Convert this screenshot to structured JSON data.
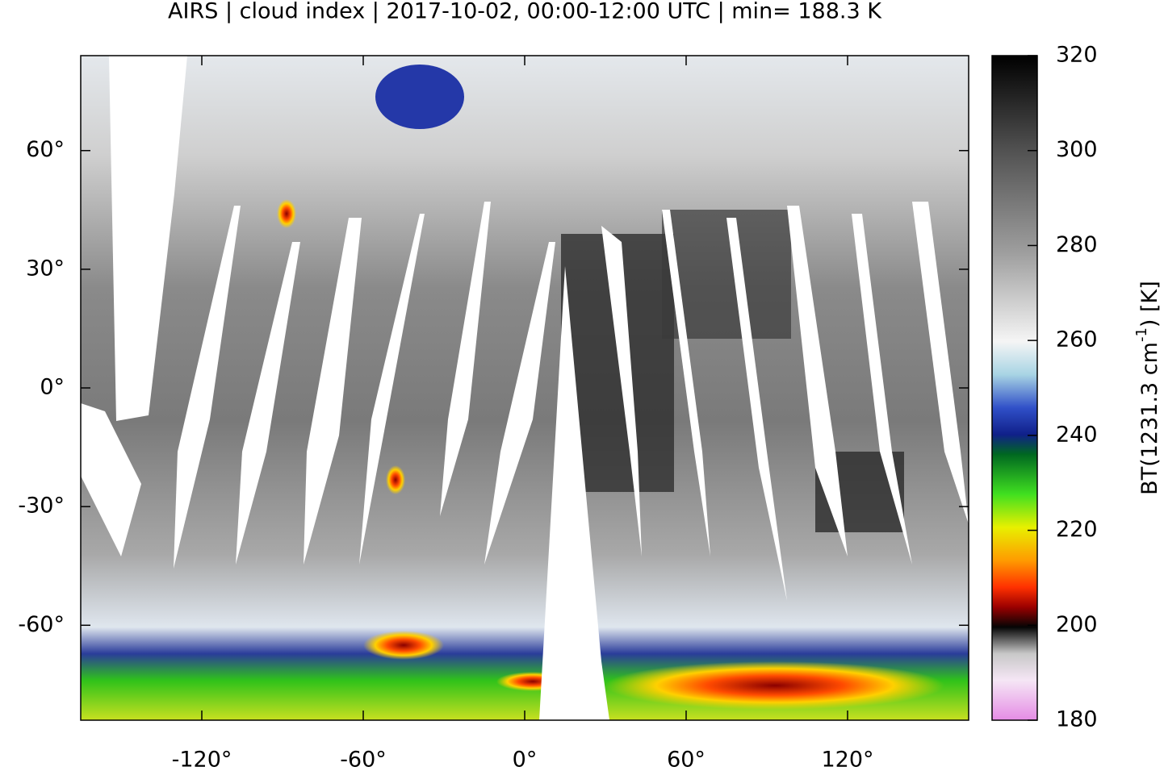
{
  "title": "AIRS | cloud index | 2017-10-02, 00:00-12:00 UTC | min= 188.3 K",
  "map": {
    "xlim": [
      -165,
      165
    ],
    "ylim": [
      -84,
      84
    ],
    "xticks": [
      {
        "value": -120,
        "label": "-120°"
      },
      {
        "value": -60,
        "label": "-60°"
      },
      {
        "value": 0,
        "label": "0°"
      },
      {
        "value": 60,
        "label": "60°"
      },
      {
        "value": 120,
        "label": "120°"
      }
    ],
    "yticks": [
      {
        "value": 60,
        "label": "60°"
      },
      {
        "value": 30,
        "label": "30°"
      },
      {
        "value": 0,
        "label": "0°"
      },
      {
        "value": -30,
        "label": "-30°"
      },
      {
        "value": -60,
        "label": "-60°"
      }
    ]
  },
  "colorbar": {
    "lim": [
      180,
      320
    ],
    "ticks": [
      180,
      200,
      220,
      240,
      260,
      280,
      300,
      320
    ],
    "label": [
      "BT(1231.3 cm",
      "-1",
      ") [K]"
    ]
  }
}
